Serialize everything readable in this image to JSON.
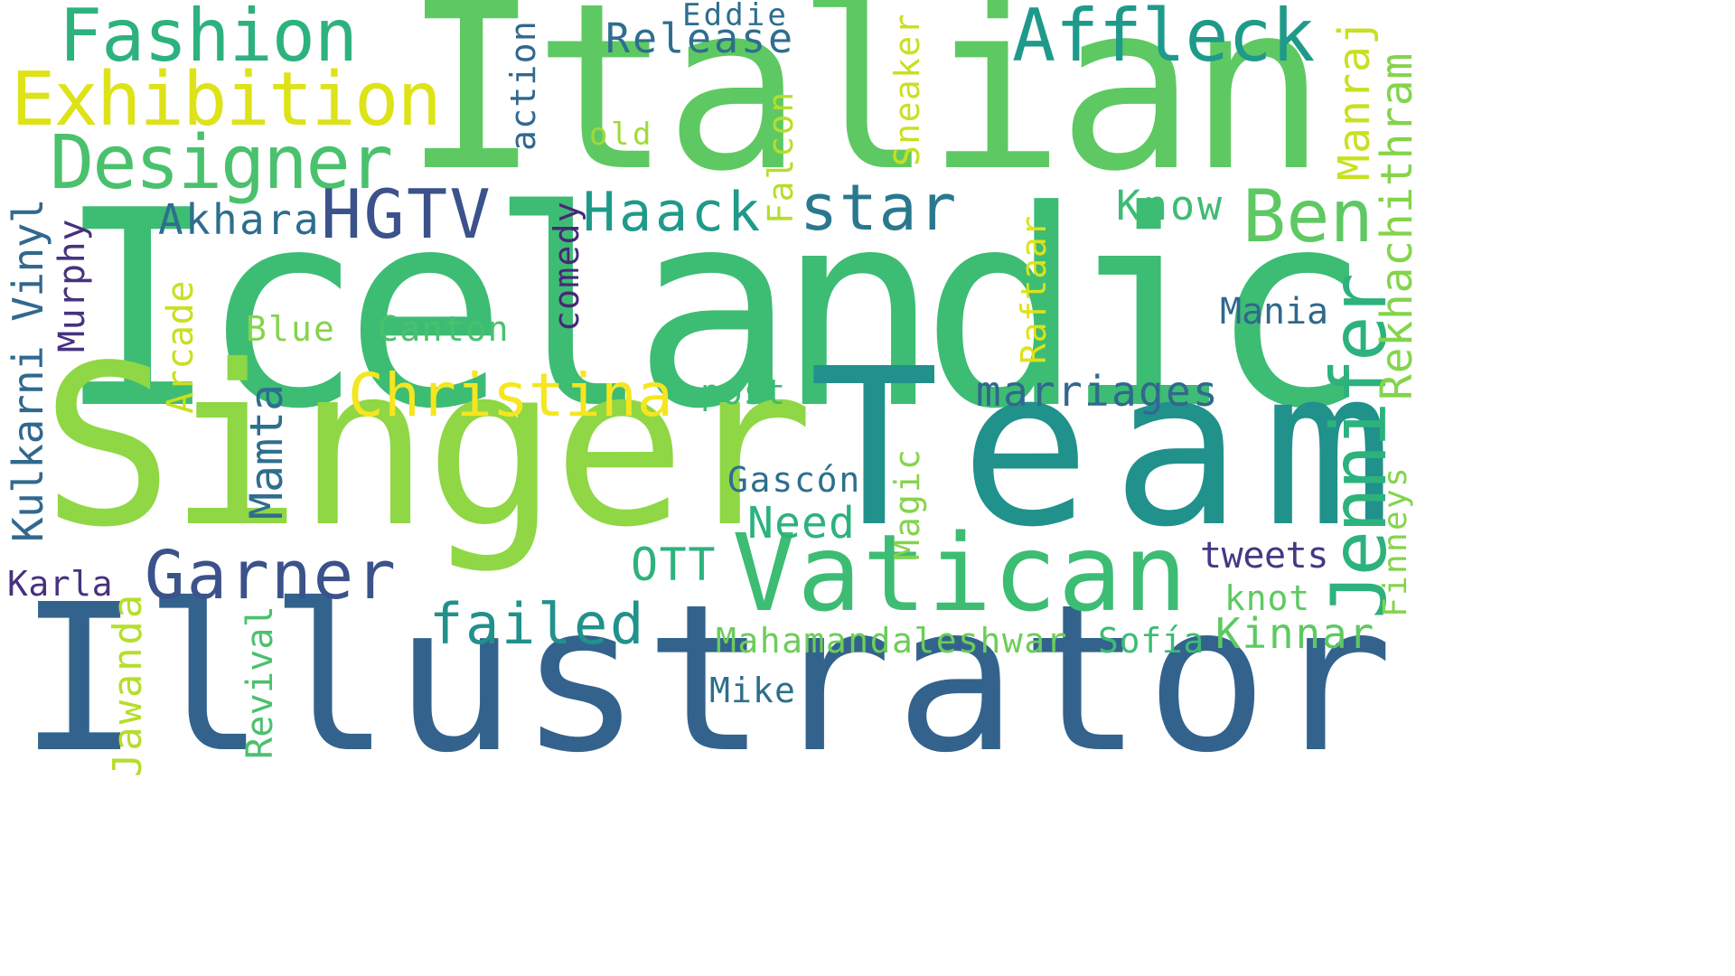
{
  "words": [
    {
      "text": "Icelandic",
      "color": "#3dbc74"
    },
    {
      "text": "Italian",
      "color": "#5ec962"
    },
    {
      "text": "Singer",
      "color": "#8fd744"
    },
    {
      "text": "Team",
      "color": "#21918c"
    },
    {
      "text": "Illustrator",
      "color": "#33638d"
    },
    {
      "text": "Vatican",
      "color": "#3dbc74"
    },
    {
      "text": "Fashion",
      "color": "#2db27d"
    },
    {
      "text": "Exhibition",
      "color": "#dde318"
    },
    {
      "text": "Designer",
      "color": "#4ac16d"
    },
    {
      "text": "Affleck",
      "color": "#1f9a8a"
    },
    {
      "text": "Release",
      "color": "#2e6e8e"
    },
    {
      "text": "Eddie",
      "color": "#2e6e8e"
    },
    {
      "text": "HGTV",
      "color": "#3b528b"
    },
    {
      "text": "Akhara",
      "color": "#2e6e8e"
    },
    {
      "text": "Haack",
      "color": "#1f9a8a"
    },
    {
      "text": "star",
      "color": "#2a788e"
    },
    {
      "text": "Ben",
      "color": "#5ec962"
    },
    {
      "text": "Know",
      "color": "#3dbc74"
    },
    {
      "text": "Jennifer",
      "color": "#2db27d"
    },
    {
      "text": "Christina",
      "color": "#f5e61f"
    },
    {
      "text": "marriages",
      "color": "#31688e"
    },
    {
      "text": "Garner",
      "color": "#3b528b"
    },
    {
      "text": "failed",
      "color": "#21918c"
    },
    {
      "text": "Kulkarni Vinyl",
      "color": "#31688e"
    },
    {
      "text": "Murphy",
      "color": "#46327e"
    },
    {
      "text": "Arcade",
      "color": "#c8e020"
    },
    {
      "text": "Blue",
      "color": "#84d44b"
    },
    {
      "text": "Canton",
      "color": "#4ac16d"
    },
    {
      "text": "comedy",
      "color": "#482878"
    },
    {
      "text": "action",
      "color": "#31688e"
    },
    {
      "text": "old",
      "color": "#a0da39"
    },
    {
      "text": "Falcon",
      "color": "#b5de2b"
    },
    {
      "text": "Sneaker",
      "color": "#c8e020"
    },
    {
      "text": "Manraj",
      "color": "#c8e020"
    },
    {
      "text": "Rekhachithram",
      "color": "#84d44b"
    },
    {
      "text": "Raftaar",
      "color": "#dde318"
    },
    {
      "text": "Mania",
      "color": "#31688e"
    },
    {
      "text": "post",
      "color": "#3dbc74"
    },
    {
      "text": "Mamta",
      "color": "#2e6e8e"
    },
    {
      "text": "Gascón",
      "color": "#2e6e8e"
    },
    {
      "text": "Need",
      "color": "#2db27d"
    },
    {
      "text": "Magic",
      "color": "#84d44b"
    },
    {
      "text": "Finneys",
      "color": "#84d44b"
    },
    {
      "text": "OTT",
      "color": "#2db27d"
    },
    {
      "text": "tweets",
      "color": "#443983"
    },
    {
      "text": "knot",
      "color": "#5ec962"
    },
    {
      "text": "Kinnar",
      "color": "#5ec962"
    },
    {
      "text": "Sofía",
      "color": "#3dbc74"
    },
    {
      "text": "Mahamandaleshwar",
      "color": "#6ccd5a"
    },
    {
      "text": "Karla",
      "color": "#46327e"
    },
    {
      "text": "Jawanda",
      "color": "#b5de2b"
    },
    {
      "text": "Revival",
      "color": "#4ac16d"
    },
    {
      "text": "Mike",
      "color": "#2e6e8e"
    }
  ]
}
